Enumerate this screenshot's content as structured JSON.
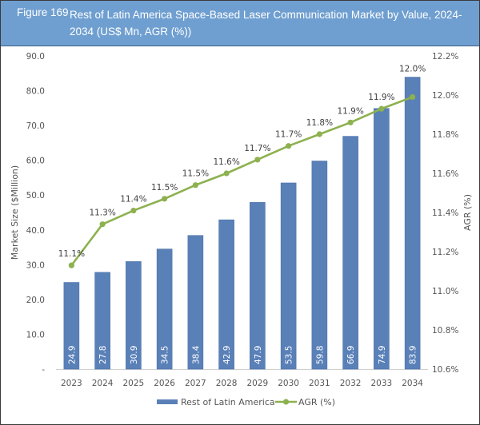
{
  "figure": {
    "number": "Figure 169",
    "title": "Rest of Latin America Space-Based Laser Communication Market by Value, 2024-2034 (US$ Mn, AGR (%))"
  },
  "colors": {
    "header": "#6f9fd0",
    "bar": "#5a80b8",
    "line": "#8db14f"
  },
  "chart_data": {
    "type": "bar",
    "title": "Rest of Latin America Space-Based Laser Communication Market by Value, 2024-2034 (US$ Mn, AGR (%))",
    "categories": [
      "2023",
      "2024",
      "2025",
      "2026",
      "2027",
      "2028",
      "2029",
      "2030",
      "2031",
      "2032",
      "2033",
      "2034"
    ],
    "series": [
      {
        "name": "Rest of Latin America",
        "type": "bar",
        "axis": "left",
        "values": [
          24.9,
          27.8,
          30.9,
          34.5,
          38.4,
          42.9,
          47.9,
          53.5,
          59.8,
          66.9,
          74.9,
          83.9
        ],
        "labels": [
          "24.9",
          "27.8",
          "30.9",
          "34.5",
          "38.4",
          "42.9",
          "47.9",
          "53.5",
          "59.8",
          "66.9",
          "74.9",
          "83.9"
        ]
      },
      {
        "name": "AGR (%)",
        "type": "line",
        "axis": "right",
        "values": [
          11.13,
          11.34,
          11.41,
          11.47,
          11.54,
          11.6,
          11.67,
          11.74,
          11.8,
          11.86,
          11.93,
          11.99
        ],
        "labels": [
          "11.1%",
          "11.3%",
          "11.4%",
          "11.5%",
          "11.5%",
          "11.6%",
          "11.7%",
          "11.7%",
          "11.8%",
          "11.9%",
          "11.9%",
          "12.0%"
        ]
      }
    ],
    "xlabel": "",
    "ylabel": "Market Size ($Million)",
    "y2label": "AGR (%)",
    "ylim": [
      0,
      90
    ],
    "y2lim": [
      10.6,
      12.2
    ],
    "yticks": [
      "-",
      "10.0",
      "20.0",
      "30.0",
      "40.0",
      "50.0",
      "60.0",
      "70.0",
      "80.0",
      "90.0"
    ],
    "y2ticks": [
      "10.6%",
      "10.8%",
      "11.0%",
      "11.2%",
      "11.4%",
      "11.6%",
      "11.8%",
      "12.0%",
      "12.2%"
    ],
    "grid": false,
    "legend": "bottom"
  },
  "legend": {
    "items": [
      "Rest of Latin America",
      "AGR (%)"
    ]
  }
}
